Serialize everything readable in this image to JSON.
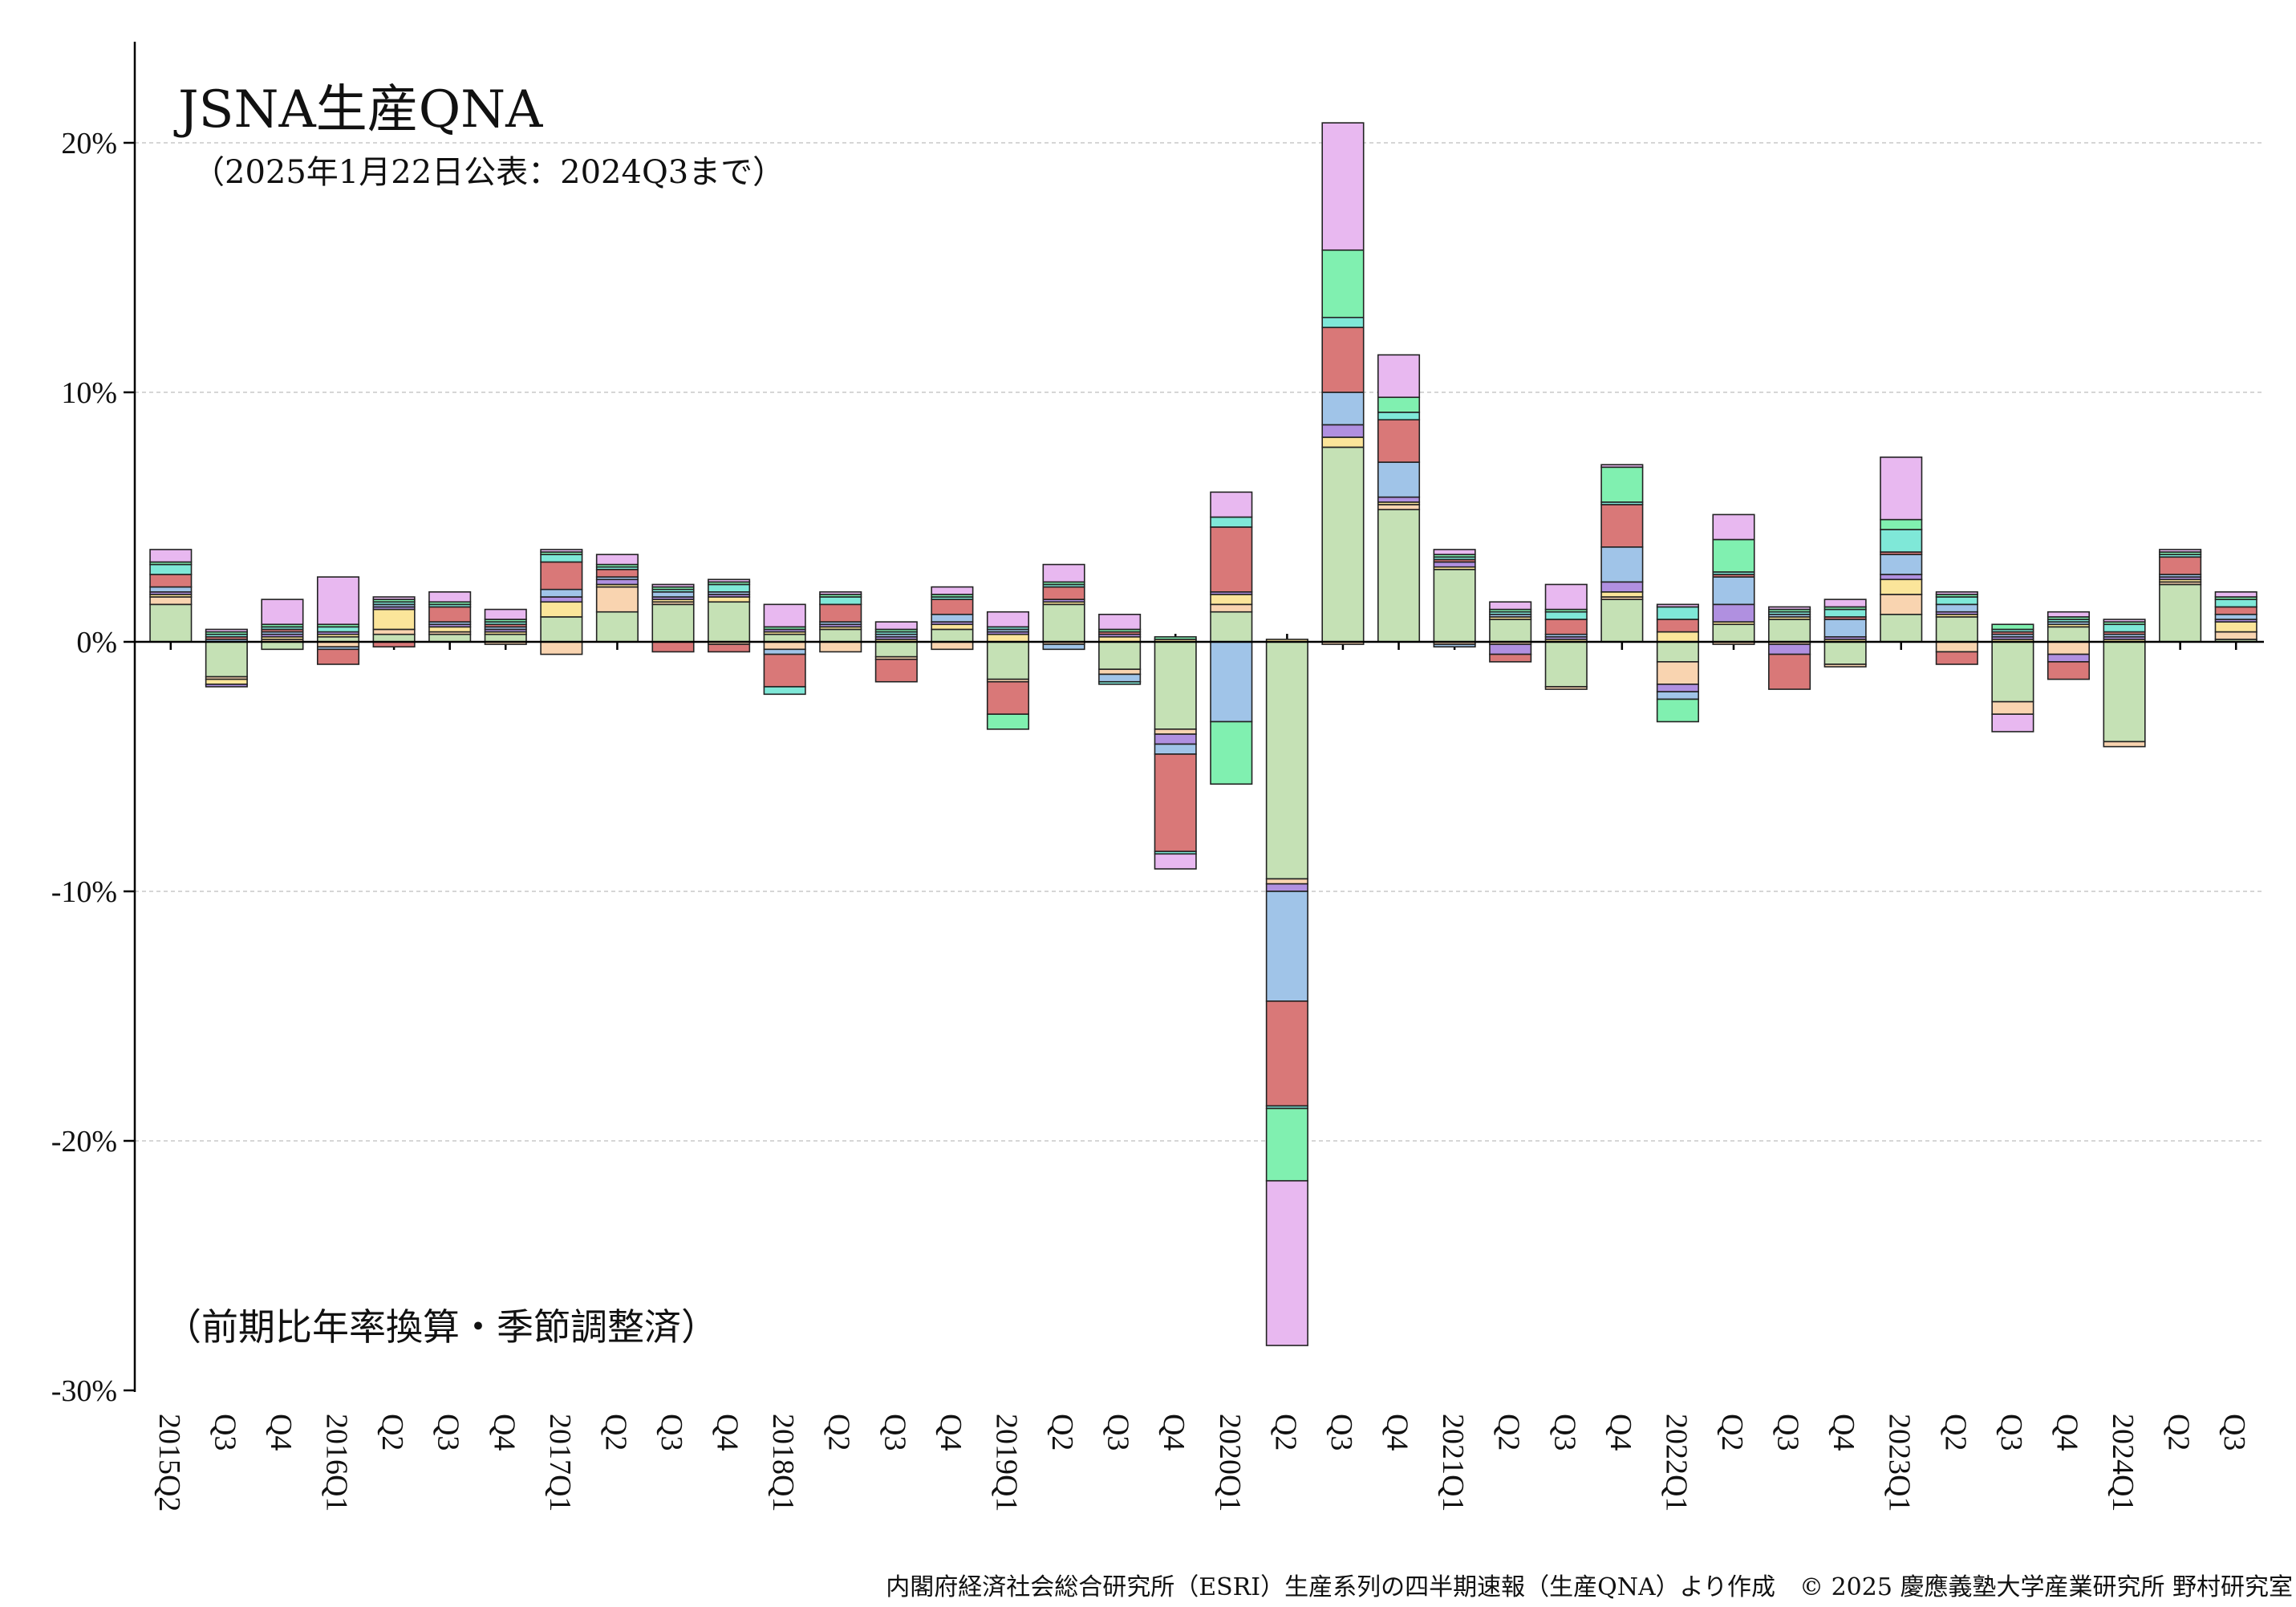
{
  "chart_data": {
    "type": "bar",
    "stacked": true,
    "title": "JSNA生産QNA",
    "subtitle": "（2025年1月22日公表：2024Q3まで）",
    "annotation": "（前期比年率換算・季節調整済）",
    "footer": "内閣府経済社会総合研究所（ESRI）生産系列の四半期速報（生産QNA）より作成　© 2025 慶應義塾大学産業研究所 野村研究室",
    "ylim": [
      -30,
      24
    ],
    "yticks": [
      20,
      10,
      0,
      -10,
      -20,
      -30
    ],
    "ytick_labels": [
      "20%",
      "10%",
      "0%",
      "-10%",
      "-20%",
      "-30%"
    ],
    "categories": [
      "2015Q2",
      "Q3",
      "Q4",
      "2016Q1",
      "Q2",
      "Q3",
      "Q4",
      "2017Q1",
      "Q2",
      "Q3",
      "Q4",
      "2018Q1",
      "Q2",
      "Q3",
      "Q4",
      "2019Q1",
      "Q2",
      "Q3",
      "Q4",
      "2020Q1",
      "Q2",
      "Q3",
      "Q4",
      "2021Q1",
      "Q2",
      "Q3",
      "Q4",
      "2022Q1",
      "Q2",
      "Q3",
      "Q4",
      "2023Q1",
      "Q2",
      "Q3",
      "Q4",
      "2024Q1",
      "Q2",
      "Q3"
    ],
    "grid": true,
    "colors": [
      "#c5e1b5",
      "#f9d4b0",
      "#fbe59a",
      "#b090e0",
      "#a0c4e8",
      "#d97878",
      "#7fe8d8",
      "#80f0b0",
      "#e8b8f0",
      "#ff9a5a",
      "#444444"
    ],
    "series": [
      {
        "name": "s1",
        "values": [
          1.5,
          -1.4,
          -0.3,
          0.2,
          0.3,
          0.3,
          0.3,
          1.0,
          1.2,
          1.5,
          1.6,
          0.3,
          0.5,
          -0.6,
          0.5,
          -1.5,
          1.5,
          -1.1,
          -3.5,
          1.2,
          -9.5,
          7.8,
          5.3,
          2.9,
          0.9,
          -1.8,
          1.7,
          -0.8,
          0.7,
          0.9,
          -0.9,
          1.1,
          1.0,
          -2.4,
          0.6,
          -4.0,
          2.3,
          0.1
        ]
      },
      {
        "name": "s2",
        "values": [
          0.3,
          -0.1,
          0.1,
          -0.2,
          0.2,
          0.1,
          -0.1,
          -0.5,
          1.0,
          0.1,
          -0.1,
          -0.3,
          -0.4,
          -0.1,
          -0.3,
          -0.1,
          -0.1,
          -0.2,
          -0.2,
          0.3,
          -0.2,
          -0.1,
          0.2,
          -0.1,
          -0.1,
          -0.1,
          0.1,
          -0.9,
          -0.1,
          -0.1,
          -0.1,
          0.8,
          -0.4,
          -0.5,
          -0.5,
          -0.2,
          0.1,
          0.3
        ]
      },
      {
        "name": "s3",
        "values": [
          0.1,
          -0.2,
          0.1,
          0.1,
          0.8,
          0.2,
          0.1,
          0.6,
          0.1,
          0.1,
          0.2,
          0.1,
          0.1,
          0.1,
          0.2,
          0.3,
          0.1,
          0.2,
          0.1,
          0.4,
          0.1,
          0.4,
          0.1,
          0.1,
          0.1,
          0.1,
          0.2,
          0.4,
          0.1,
          0.1,
          0.1,
          0.6,
          0.1,
          0.1,
          0.1,
          0.1,
          0.1,
          0.4
        ]
      },
      {
        "name": "s4",
        "values": [
          0.1,
          -0.1,
          0.1,
          0.1,
          0.1,
          0.1,
          0.1,
          0.2,
          0.2,
          0.1,
          0.1,
          0.1,
          0.1,
          0.1,
          0.1,
          0.1,
          0.1,
          0.1,
          -0.4,
          0.1,
          -0.3,
          0.5,
          0.2,
          0.2,
          -0.4,
          0.1,
          0.4,
          -0.3,
          0.7,
          -0.4,
          0.1,
          0.2,
          0.1,
          0.1,
          -0.3,
          0.1,
          0.1,
          0.1
        ]
      },
      {
        "name": "s5",
        "values": [
          0.2,
          0.1,
          0.1,
          -0.1,
          0.1,
          0.1,
          0.1,
          0.3,
          0.1,
          0.2,
          0.1,
          -0.2,
          0.1,
          0.1,
          0.3,
          0.1,
          -0.2,
          -0.3,
          -0.4,
          -3.2,
          -4.4,
          1.3,
          1.4,
          -0.1,
          0.1,
          0.1,
          1.4,
          -0.3,
          1.1,
          0.1,
          0.7,
          0.8,
          0.3,
          0.1,
          0.1,
          0.1,
          0.1,
          0.2
        ]
      },
      {
        "name": "s6",
        "values": [
          0.5,
          0.1,
          0.1,
          -0.6,
          -0.2,
          0.6,
          0.1,
          1.1,
          0.3,
          -0.4,
          -0.3,
          -1.3,
          0.7,
          -0.9,
          0.6,
          -1.3,
          0.5,
          0.1,
          -3.9,
          2.6,
          -4.2,
          2.6,
          1.7,
          0.1,
          -0.3,
          0.6,
          1.7,
          0.5,
          0.1,
          -1.4,
          0.1,
          0.1,
          -0.5,
          0.1,
          -0.7,
          0.1,
          0.7,
          0.3
        ]
      },
      {
        "name": "s7",
        "values": [
          0.4,
          0.1,
          0.1,
          0.2,
          0.1,
          0.1,
          0.1,
          0.3,
          0.1,
          0.1,
          0.3,
          -0.3,
          0.3,
          0.1,
          0.1,
          0.1,
          0.1,
          -0.1,
          -0.1,
          0.4,
          -0.1,
          0.4,
          0.3,
          0.1,
          0.1,
          0.3,
          0.1,
          0.5,
          0.1,
          0.1,
          0.3,
          0.9,
          0.3,
          0.1,
          0.1,
          0.3,
          0.1,
          0.3
        ]
      },
      {
        "name": "s8",
        "values": [
          0.1,
          0.1,
          0.1,
          0.1,
          0.1,
          0.1,
          0.1,
          0.1,
          0.1,
          0.1,
          0.1,
          0.1,
          0.1,
          0.1,
          0.1,
          -0.6,
          0.1,
          0.1,
          0.1,
          -2.5,
          -2.9,
          2.7,
          0.6,
          0.1,
          0.1,
          0.1,
          1.4,
          -0.9,
          1.3,
          0.1,
          0.1,
          0.4,
          0.1,
          0.2,
          0.1,
          0.1,
          0.1,
          0.1
        ]
      },
      {
        "name": "s9",
        "values": [
          0.5,
          0.1,
          1.0,
          1.9,
          0.1,
          0.4,
          0.4,
          0.1,
          0.4,
          0.1,
          0.1,
          0.9,
          0.1,
          0.3,
          0.3,
          0.6,
          0.7,
          0.6,
          -0.6,
          1.0,
          -6.6,
          5.1,
          1.7,
          0.2,
          0.3,
          1.0,
          0.1,
          0.1,
          1.0,
          0.1,
          0.3,
          2.5,
          0.1,
          -0.7,
          0.2,
          0.1,
          0.1,
          0.2
        ]
      }
    ]
  }
}
